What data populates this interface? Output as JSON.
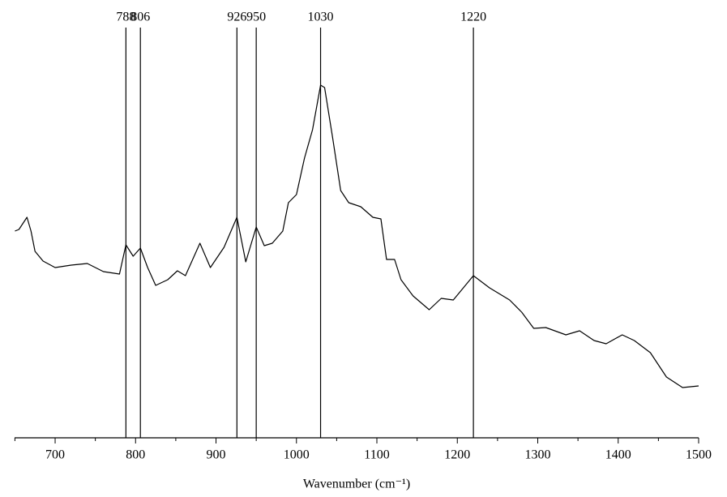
{
  "chart_data": {
    "type": "line",
    "x_label": "Wavenumber (cm⁻¹)",
    "xlim": [
      650,
      1500
    ],
    "xticks": [
      700,
      800,
      900,
      1000,
      1100,
      1200,
      1300,
      1400,
      1500
    ],
    "xminorticks": [
      650,
      750,
      850,
      950,
      1050,
      1150,
      1250,
      1350,
      1450
    ],
    "ylim": [
      0,
      108
    ],
    "peaks": [
      788,
      806,
      926,
      950,
      1030,
      1220
    ],
    "color": "#000000",
    "x": [
      650,
      655,
      665,
      670,
      675,
      685,
      700,
      720,
      740,
      760,
      780,
      788,
      797,
      806,
      815,
      825,
      840,
      852,
      862,
      880,
      893,
      910,
      926,
      937,
      950,
      960,
      970,
      983,
      990,
      1000,
      1010,
      1020,
      1030,
      1035,
      1045,
      1055,
      1065,
      1080,
      1095,
      1105,
      1112,
      1122,
      1130,
      1145,
      1165,
      1180,
      1195,
      1220,
      1240,
      1265,
      1280,
      1295,
      1310,
      1335,
      1352,
      1370,
      1385,
      1405,
      1420,
      1440,
      1460,
      1480,
      1500
    ],
    "values": [
      51,
      51.4,
      54.4,
      51,
      46,
      43.6,
      42,
      42.6,
      43,
      41,
      40.4,
      47.6,
      44.8,
      46.8,
      42,
      37.6,
      39,
      41.2,
      40,
      48,
      42,
      47,
      54.4,
      43.4,
      52,
      47.4,
      48,
      51,
      58,
      60,
      69,
      76,
      87,
      86.4,
      74,
      61,
      58,
      57,
      54.4,
      54,
      44,
      44,
      39,
      35,
      31.6,
      34.4,
      34,
      40,
      37,
      34,
      31,
      27,
      27.2,
      25.4,
      26.4,
      24,
      23.2,
      25.4,
      24,
      21,
      15,
      12.4,
      12.8
    ]
  }
}
